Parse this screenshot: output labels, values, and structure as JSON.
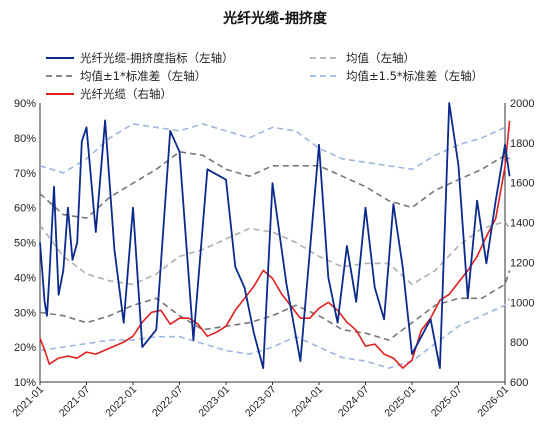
{
  "chart_data": {
    "type": "line",
    "title": "光纤光缆-拥挤度",
    "x_ticks": [
      "2021-01",
      "2021-07",
      "2022-01",
      "2022-07",
      "2023-01",
      "2023-07",
      "2024-01",
      "2024-07",
      "2025-01",
      "2025-07",
      "2026-01"
    ],
    "y_left": {
      "min": 10,
      "max": 90,
      "ticks": [
        "10%",
        "20%",
        "30%",
        "40%",
        "50%",
        "60%",
        "70%",
        "80%",
        "90%"
      ]
    },
    "y_right": {
      "min": 600,
      "max": 2000,
      "ticks": [
        "600",
        "800",
        "1000",
        "1200",
        "1400",
        "1600",
        "1800",
        "2000"
      ]
    },
    "legend": {
      "crowding": "光纤光缆-拥挤度指标（左轴）",
      "mean": "均值（左轴）",
      "sd1": "均值±1*标准差（左轴）",
      "sd15": "均值±1.5*标准差（左轴）",
      "price": "光纤光缆（右轴）"
    },
    "colors": {
      "crowding": "#0a2a8c",
      "mean": "#b0b0b0",
      "sd1": "#777777",
      "sd15": "#9fb6e0",
      "price": "#e02020"
    },
    "series": [
      {
        "name": "光纤光缆-拥挤度指标（左轴）",
        "key": "crowding",
        "axis": "left",
        "x": [
          0.0,
          0.1,
          0.15,
          0.2,
          0.3,
          0.4,
          0.5,
          0.6,
          0.7,
          0.8,
          0.9,
          1.0,
          1.2,
          1.4,
          1.6,
          1.8,
          2.0,
          2.2,
          2.5,
          2.8,
          3.0,
          3.3,
          3.6,
          4.0,
          4.2,
          4.4,
          4.6,
          4.8,
          5.0,
          5.3,
          5.6,
          6.0,
          6.2,
          6.4,
          6.6,
          6.8,
          7.0,
          7.2,
          7.4,
          7.6,
          7.8,
          8.0,
          8.2,
          8.4,
          8.6,
          8.8,
          9.0,
          9.2,
          9.4,
          9.6,
          9.8,
          10.0,
          10.1
        ],
        "y": [
          50,
          33,
          29,
          40,
          66,
          35,
          42,
          60,
          45,
          50,
          79,
          83,
          53,
          85,
          48,
          27,
          60,
          20,
          25,
          82,
          76,
          22,
          71,
          68,
          43,
          37,
          24,
          14,
          67,
          38,
          16,
          78,
          40,
          27,
          49,
          33,
          60,
          37,
          28,
          61,
          43,
          18,
          23,
          28,
          14,
          90,
          72,
          34,
          62,
          44,
          62,
          78,
          69
        ]
      },
      {
        "name": "均值（左轴）",
        "key": "mean",
        "axis": "left",
        "x": [
          0,
          0.5,
          1.0,
          1.5,
          2.0,
          2.5,
          3.0,
          3.5,
          4.0,
          4.5,
          5.0,
          5.5,
          6.0,
          6.5,
          7.0,
          7.5,
          8.0,
          8.5,
          9.0,
          9.5,
          10.0,
          10.1
        ],
        "y": [
          55,
          46,
          41,
          39,
          38,
          41,
          46,
          48,
          51,
          54,
          53,
          50,
          46,
          43,
          44,
          44,
          38,
          42,
          49,
          54,
          56,
          54
        ]
      },
      {
        "name": "均值±1*标准差（左轴）",
        "key": "sd1_upper",
        "axis": "left",
        "x": [
          0,
          0.5,
          1.0,
          1.5,
          2.0,
          2.5,
          3.0,
          3.5,
          4.0,
          4.5,
          5.0,
          5.5,
          6.0,
          6.5,
          7.0,
          7.5,
          8.0,
          8.5,
          9.0,
          9.5,
          10.0,
          10.1
        ],
        "y": [
          64,
          58,
          57,
          63,
          67,
          71,
          76,
          75,
          71,
          69,
          72,
          72,
          72,
          69,
          66,
          62,
          60,
          65,
          68,
          71,
          75,
          74
        ]
      },
      {
        "name": "均值-1*标准差",
        "key": "sd1_lower",
        "axis": "left",
        "x": [
          0,
          0.5,
          1.0,
          1.5,
          2.0,
          2.5,
          3.0,
          3.5,
          4.0,
          4.5,
          5.0,
          5.5,
          6.0,
          6.5,
          7.0,
          7.5,
          8.0,
          8.5,
          9.0,
          9.5,
          10.0,
          10.1
        ],
        "y": [
          30,
          29,
          27,
          29,
          32,
          34,
          29,
          25,
          26,
          27,
          29,
          32,
          29,
          25,
          24,
          22,
          27,
          32,
          34,
          34,
          38,
          42
        ]
      },
      {
        "name": "均值±1.5*标准差（左轴）",
        "key": "sd15_upper",
        "axis": "left",
        "x": [
          0,
          0.5,
          1.0,
          1.5,
          2.0,
          2.5,
          3.0,
          3.5,
          4.0,
          4.5,
          5.0,
          5.5,
          6.0,
          6.5,
          7.0,
          7.5,
          8.0,
          8.5,
          9.0,
          9.5,
          10.0,
          10.1
        ],
        "y": [
          72,
          70,
          74,
          80,
          84,
          83,
          82,
          84,
          82,
          80,
          83,
          82,
          77,
          74,
          73,
          72,
          71,
          75,
          78,
          80,
          83,
          82
        ]
      },
      {
        "name": "均值-1.5*标准差",
        "key": "sd15_lower",
        "axis": "left",
        "x": [
          0,
          0.5,
          1.0,
          1.5,
          2.0,
          2.5,
          3.0,
          3.5,
          4.0,
          4.5,
          5.0,
          5.5,
          6.0,
          6.5,
          7.0,
          7.5,
          8.0,
          8.5,
          9.0,
          9.5,
          10.0,
          10.1
        ],
        "y": [
          19,
          20,
          21,
          22,
          22,
          23,
          23,
          21,
          19,
          18,
          20,
          23,
          20,
          17,
          16,
          14,
          16,
          21,
          26,
          29,
          32,
          34
        ]
      },
      {
        "name": "光纤光缆（右轴）",
        "key": "price",
        "axis": "right",
        "x": [
          0.0,
          0.1,
          0.2,
          0.4,
          0.6,
          0.8,
          1.0,
          1.2,
          1.4,
          1.6,
          1.8,
          2.0,
          2.2,
          2.4,
          2.6,
          2.8,
          3.0,
          3.2,
          3.4,
          3.6,
          3.8,
          4.0,
          4.2,
          4.4,
          4.6,
          4.8,
          5.0,
          5.2,
          5.4,
          5.6,
          5.8,
          6.0,
          6.2,
          6.4,
          6.6,
          6.8,
          7.0,
          7.2,
          7.4,
          7.6,
          7.8,
          8.0,
          8.2,
          8.4,
          8.6,
          8.8,
          9.0,
          9.2,
          9.4,
          9.6,
          9.8,
          10.0,
          10.1
        ],
        "y": [
          820,
          760,
          690,
          720,
          730,
          720,
          750,
          740,
          760,
          780,
          800,
          830,
          900,
          950,
          960,
          890,
          920,
          920,
          890,
          830,
          850,
          880,
          960,
          1020,
          1080,
          1160,
          1120,
          1040,
          980,
          920,
          920,
          970,
          1000,
          960,
          900,
          860,
          780,
          790,
          740,
          720,
          670,
          710,
          860,
          920,
          1010,
          1040,
          1100,
          1160,
          1230,
          1330,
          1420,
          1680,
          1910
        ]
      }
    ]
  }
}
